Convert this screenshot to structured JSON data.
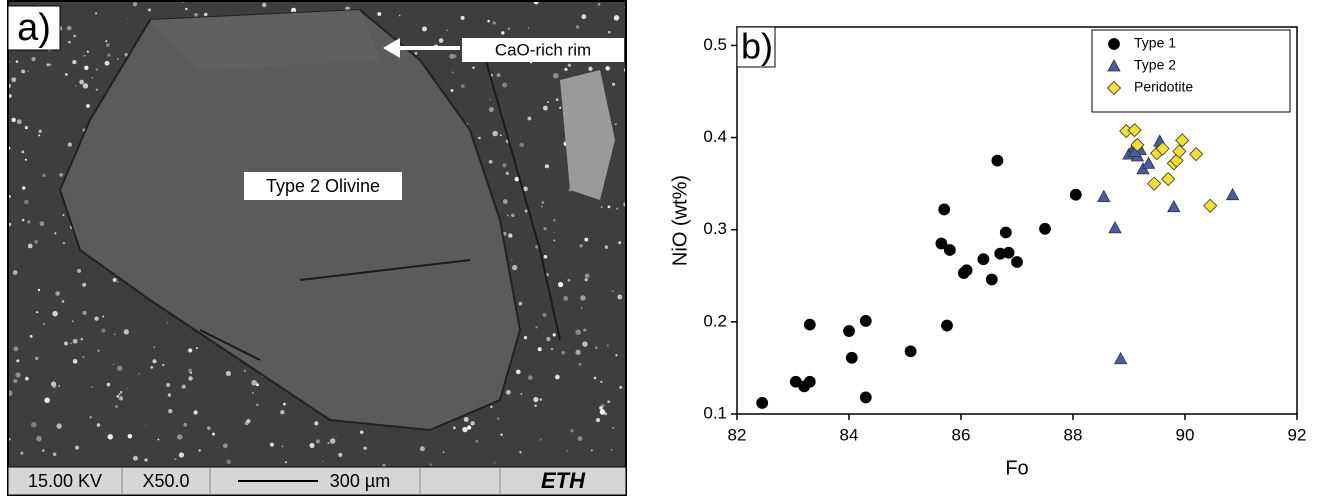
{
  "image_panel": {
    "label": "a)",
    "annotations": [
      "CaO-rich rim",
      "Type 2 Olivine"
    ],
    "info_bar": [
      "15.00 KV",
      "X50.0",
      "300 µm",
      "ETH"
    ]
  },
  "chart_data": {
    "type": "scatter",
    "panel_label": "b)",
    "x_label": "Fo",
    "y_label": "NiO (wt%)",
    "xlim": [
      82,
      92
    ],
    "ylim": [
      0.1,
      0.52
    ],
    "xticks": [
      82,
      84,
      86,
      88,
      90,
      92
    ],
    "yticks": [
      0.1,
      0.2,
      0.3,
      0.4,
      0.5
    ],
    "legend": "upper right",
    "series": [
      {
        "name": "Type 1",
        "color": "#000000",
        "marker": "circle",
        "x": [
          82.45,
          83.05,
          83.2,
          83.3,
          83.3,
          84.0,
          84.05,
          84.3,
          84.3,
          85.1,
          85.65,
          85.7,
          85.8,
          85.75,
          86.05,
          86.1,
          86.4,
          86.55,
          86.65,
          86.7,
          86.8,
          86.85,
          87.0,
          87.5,
          88.05
        ],
        "values": [
          0.112,
          0.135,
          0.13,
          0.135,
          0.197,
          0.19,
          0.161,
          0.201,
          0.118,
          0.168,
          0.285,
          0.322,
          0.278,
          0.196,
          0.253,
          0.256,
          0.268,
          0.246,
          0.375,
          0.274,
          0.297,
          0.275,
          0.265,
          0.301,
          0.338
        ]
      },
      {
        "name": "Type 2",
        "color": "#4a5aa8",
        "marker": "triangle",
        "x": [
          88.55,
          88.75,
          88.85,
          89.0,
          89.1,
          89.15,
          89.2,
          89.25,
          89.35,
          89.55,
          89.8,
          90.85,
          89.1
        ],
        "values": [
          0.336,
          0.302,
          0.16,
          0.382,
          0.39,
          0.38,
          0.387,
          0.366,
          0.372,
          0.396,
          0.325,
          0.338,
          0.385
        ]
      },
      {
        "name": "Peridotite",
        "color": "#f2e02e",
        "marker": "diamond",
        "x": [
          88.95,
          89.1,
          89.15,
          89.5,
          89.6,
          89.45,
          89.7,
          89.8,
          89.85,
          89.9,
          89.95,
          90.2,
          90.45
        ],
        "values": [
          0.407,
          0.408,
          0.392,
          0.383,
          0.388,
          0.35,
          0.355,
          0.372,
          0.375,
          0.385,
          0.397,
          0.382,
          0.326
        ]
      }
    ]
  }
}
